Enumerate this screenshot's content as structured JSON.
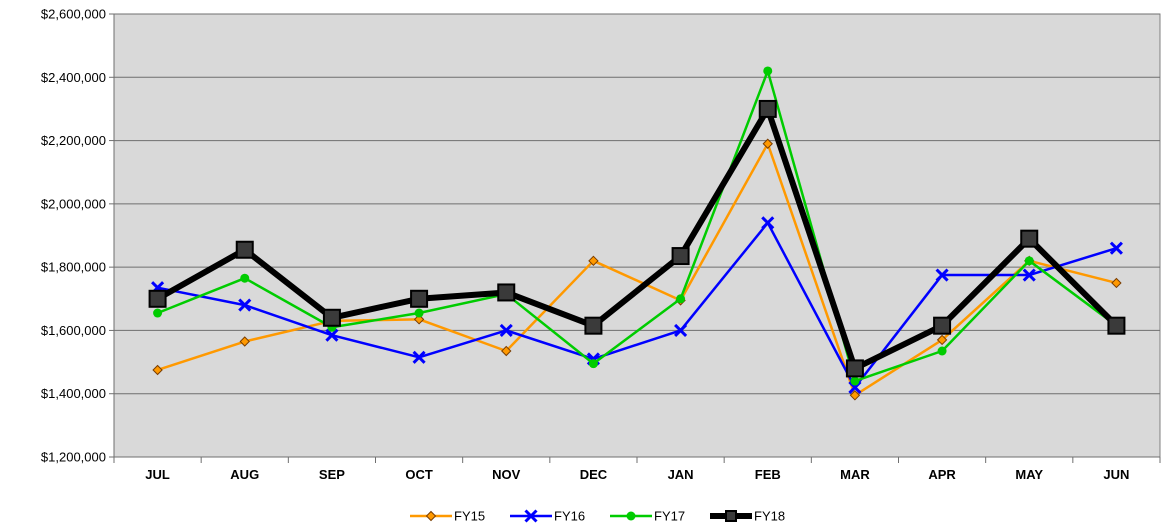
{
  "chart_data": {
    "type": "line",
    "title": "",
    "xlabel": "",
    "ylabel": "",
    "categories": [
      "JUL",
      "AUG",
      "SEP",
      "OCT",
      "NOV",
      "DEC",
      "JAN",
      "FEB",
      "MAR",
      "APR",
      "MAY",
      "JUN"
    ],
    "ylim": [
      1200000,
      2600000
    ],
    "yticks": [
      1200000,
      1400000,
      1600000,
      1800000,
      2000000,
      2200000,
      2400000,
      2600000
    ],
    "ytick_labels": [
      "$1,200,000",
      "$1,400,000",
      "$1,600,000",
      "$1,800,000",
      "$2,000,000",
      "$2,200,000",
      "$2,400,000",
      "$2,600,000"
    ],
    "grid": true,
    "plot_background": "#d9d9d9",
    "legend_position": "bottom",
    "series": [
      {
        "name": "FY15",
        "color": "#ff9900",
        "marker": "diamond",
        "emphasis": "thin",
        "values": [
          1475000,
          1565000,
          1630000,
          1635000,
          1535000,
          1820000,
          1695000,
          2190000,
          1395000,
          1570000,
          1820000,
          1750000
        ]
      },
      {
        "name": "FY16",
        "color": "#0000ff",
        "marker": "x",
        "emphasis": "thin",
        "values": [
          1735000,
          1680000,
          1585000,
          1515000,
          1600000,
          1510000,
          1600000,
          1940000,
          1420000,
          1775000,
          1775000,
          1860000
        ]
      },
      {
        "name": "FY17",
        "color": "#00cc00",
        "marker": "dot",
        "emphasis": "thin",
        "values": [
          1655000,
          1765000,
          1610000,
          1655000,
          1715000,
          1495000,
          1700000,
          2420000,
          1440000,
          1535000,
          1820000,
          1615000
        ]
      },
      {
        "name": "FY18",
        "color": "#000000",
        "marker": "square",
        "emphasis": "thick",
        "values": [
          1700000,
          1855000,
          1640000,
          1700000,
          1720000,
          1615000,
          1835000,
          2300000,
          1480000,
          1615000,
          1890000,
          1615000
        ]
      }
    ]
  }
}
